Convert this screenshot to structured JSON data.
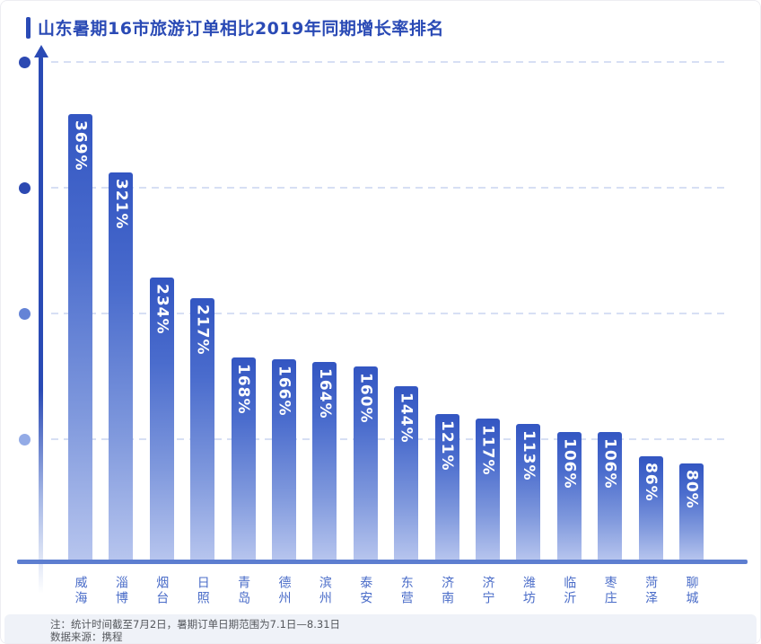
{
  "header": {
    "title": "山东暑期16市旅游订单相比2019年同期增长率排名"
  },
  "notes": {
    "line1": "注：统计时间截至7月2日，暑期订单日期范围为7.1日—8.31日",
    "line2": "数据来源：携程"
  },
  "colors": {
    "accent_blue": "#2a4ab5",
    "bar_gradient_top": "#3356c2",
    "bar_gradient_bottom": "#b7c5ee",
    "baseline": "#5d7ed0",
    "gridline": "#d7dff4",
    "city_label": "#4a6cc8",
    "note_background": "#eff2f8",
    "note_text": "#54575c",
    "value_label": "#ffffff"
  },
  "chart_data": {
    "type": "bar",
    "title": "山东暑期16市旅游订单相比2019年同期增长率排名",
    "categories": [
      "威海",
      "淄博",
      "烟台",
      "日照",
      "青岛",
      "德州",
      "滨州",
      "泰安",
      "东营",
      "济南",
      "济宁",
      "潍坊",
      "临沂",
      "枣庄",
      "菏泽",
      "聊城"
    ],
    "values": [
      369,
      321,
      234,
      217,
      168,
      166,
      164,
      160,
      144,
      121,
      117,
      113,
      106,
      106,
      86,
      80
    ],
    "value_labels": [
      "369%",
      "321%",
      "234%",
      "217%",
      "168%",
      "166%",
      "164%",
      "160%",
      "144%",
      "121%",
      "117%",
      "113%",
      "106%",
      "106%",
      "86%",
      "80%"
    ],
    "xlabel": "",
    "ylabel": "",
    "ylim": [
      0,
      400
    ],
    "grid": "4 dashed horizontal gridlines, unlabeled y-axis with arrow and dots",
    "legend": "none",
    "bar_orientation": "vertical",
    "value_label_position": "inside-top, rotated 90°"
  }
}
